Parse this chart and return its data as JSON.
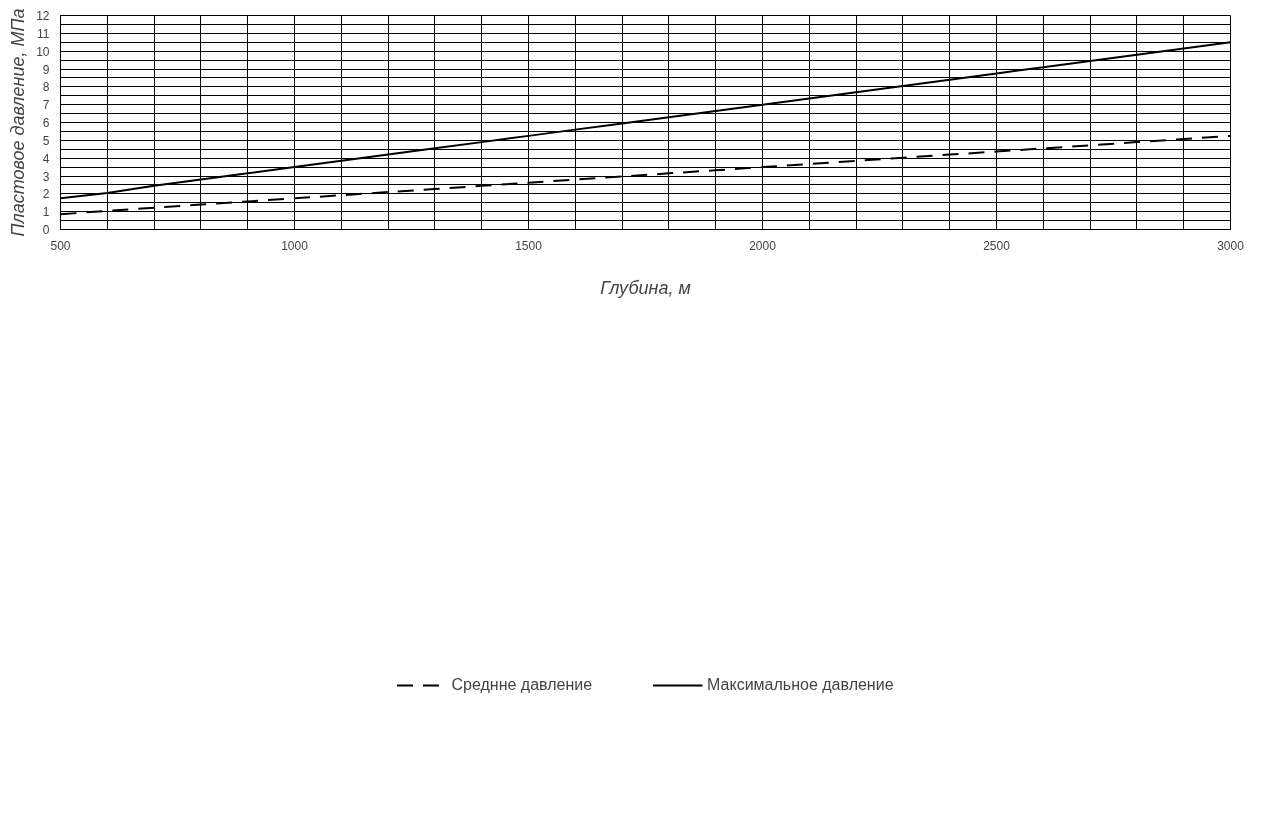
{
  "chart_data": {
    "type": "line",
    "xlabel": "Глубина, м",
    "ylabel": "Пластовое давление, МПа",
    "x": [
      500,
      600,
      700,
      800,
      900,
      1000,
      1100,
      1200,
      1300,
      1400,
      1500,
      1600,
      1700,
      1800,
      1900,
      2000,
      2100,
      2200,
      2300,
      2400,
      2500,
      2600,
      2700,
      2800,
      2900,
      3000
    ],
    "series": [
      {
        "name": "Среднне давление",
        "color": "#000000",
        "line_style": "dashed",
        "values": [
          0.85,
          1.05,
          1.22,
          1.4,
          1.57,
          1.75,
          1.92,
          2.1,
          2.27,
          2.45,
          2.62,
          2.8,
          2.97,
          3.15,
          3.32,
          3.5,
          3.67,
          3.85,
          4.02,
          4.2,
          4.37,
          4.55,
          4.72,
          4.9,
          5.07,
          5.25
        ]
      },
      {
        "name": "Максимальное давление",
        "color": "#000000",
        "line_style": "solid",
        "values": [
          1.75,
          2.05,
          2.45,
          2.8,
          3.15,
          3.5,
          3.85,
          4.2,
          4.55,
          4.9,
          5.25,
          5.6,
          5.95,
          6.3,
          6.65,
          7.0,
          7.35,
          7.7,
          8.05,
          8.4,
          8.75,
          9.1,
          9.45,
          9.8,
          10.15,
          10.5
        ]
      }
    ],
    "xlim": [
      500,
      3000
    ],
    "ylim": [
      0,
      12
    ],
    "xticks": [
      500,
      {
        "value": 600,
        "label": null
      },
      {
        "value": 700,
        "label": null
      },
      {
        "value": 800,
        "label": null
      },
      {
        "value": 900,
        "label": null
      },
      1000,
      {
        "value": 1100,
        "label": null
      },
      {
        "value": 1200,
        "label": null
      },
      {
        "value": 1300,
        "label": null
      },
      {
        "value": 1400,
        "label": null
      },
      1500,
      {
        "value": 1600,
        "label": null
      },
      {
        "value": 1700,
        "label": null
      },
      {
        "value": 1800,
        "label": null
      },
      {
        "value": 1900,
        "label": null
      },
      2000,
      {
        "value": 2100,
        "label": null
      },
      {
        "value": 2200,
        "label": null
      },
      {
        "value": 2300,
        "label": null
      },
      {
        "value": 2400,
        "label": null
      },
      2500,
      {
        "value": 2600,
        "label": null
      },
      {
        "value": 2700,
        "label": null
      },
      {
        "value": 2800,
        "label": null
      },
      {
        "value": 2900,
        "label": null
      },
      3000
    ],
    "yticks": [
      0,
      {
        "value": 0.5,
        "label": null
      },
      1,
      {
        "value": 1.5,
        "label": null
      },
      2,
      {
        "value": 2.5,
        "label": null
      },
      3,
      {
        "value": 3.5,
        "label": null
      },
      4,
      {
        "value": 4.5,
        "label": null
      },
      5,
      {
        "value": 5.5,
        "label": null
      },
      6,
      {
        "value": 6.5,
        "label": null
      },
      7,
      {
        "value": 7.5,
        "label": null
      },
      8,
      {
        "value": 8.5,
        "label": null
      },
      9,
      {
        "value": 9.5,
        "label": null
      },
      10,
      {
        "value": 10.5,
        "label": null
      },
      11,
      {
        "value": 11.5,
        "label": null
      },
      12
    ],
    "grid": true,
    "legend": "bottom",
    "marker": "none"
  }
}
